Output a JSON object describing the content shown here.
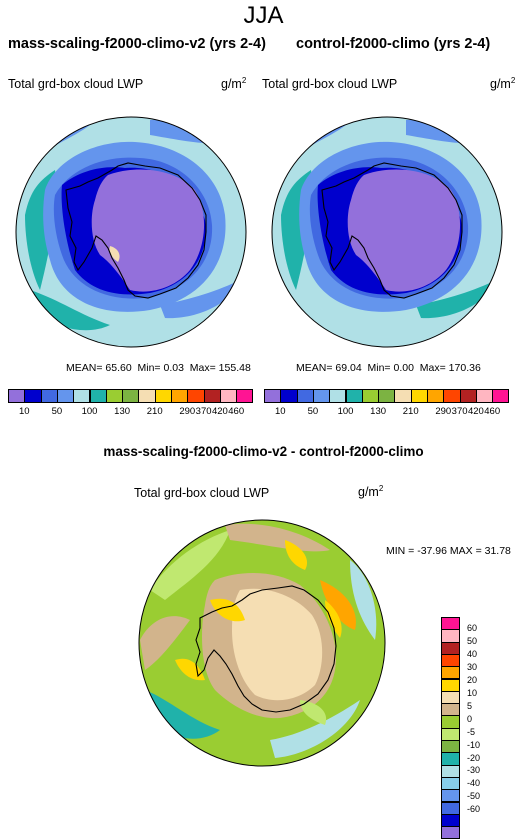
{
  "main_title": "JJA",
  "left_panel": {
    "title": "mass-scaling-f2000-climo-v2 (yrs 2-4)",
    "variable": "Total grd-box cloud LWP",
    "units": "g/m",
    "units_sup": "2",
    "stats": {
      "mean_label": "MEAN=",
      "mean": "65.60",
      "min_label": "Min=",
      "min": "0.03",
      "max_label": "Max=",
      "max": "155.48"
    }
  },
  "right_panel": {
    "title": "control-f2000-climo (yrs 2-4)",
    "variable": "Total grd-box cloud LWP",
    "units": "g/m",
    "units_sup": "2",
    "stats": {
      "mean_label": "MEAN=",
      "mean": "69.04",
      "min_label": "Min=",
      "min": "0.00",
      "max_label": "Max=",
      "max": "170.36"
    }
  },
  "top_colorbar": {
    "colors": [
      "#9370DB",
      "#0000CD",
      "#4169E1",
      "#6495ED",
      "#B0E0E6",
      "#20B2AA",
      "#9ACD32",
      "#7CB342",
      "#F5DEB3",
      "#FFD700",
      "#FFA500",
      "#FF4500",
      "#B22222",
      "#FFB6C1",
      "#FF1493"
    ],
    "labels": [
      "10",
      "50",
      "100",
      "130",
      "210",
      "290",
      "370",
      "420",
      "460"
    ]
  },
  "diff_panel": {
    "title": "mass-scaling-f2000-climo-v2 - control-f2000-climo",
    "variable": "Total grd-box cloud LWP",
    "units": "g/m",
    "units_sup": "2",
    "minmax": "MIN = -37.96  MAX =  31.78"
  },
  "diff_colorbar": {
    "colors": [
      "#FF1493",
      "#FFB6C1",
      "#B22222",
      "#FF4500",
      "#FFA500",
      "#FFD700",
      "#F5DEB3",
      "#D2B48C",
      "#9ACD32",
      "#C0E870",
      "#7CB342",
      "#20B2AA",
      "#B0E0E6",
      "#87CEEB",
      "#6495ED",
      "#4169E1",
      "#0000CD",
      "#9370DB"
    ],
    "labels": [
      "60",
      "50",
      "40",
      "30",
      "20",
      "10",
      "5",
      "0",
      "-5",
      "-10",
      "-20",
      "-30",
      "-40",
      "-50",
      "-60"
    ]
  }
}
